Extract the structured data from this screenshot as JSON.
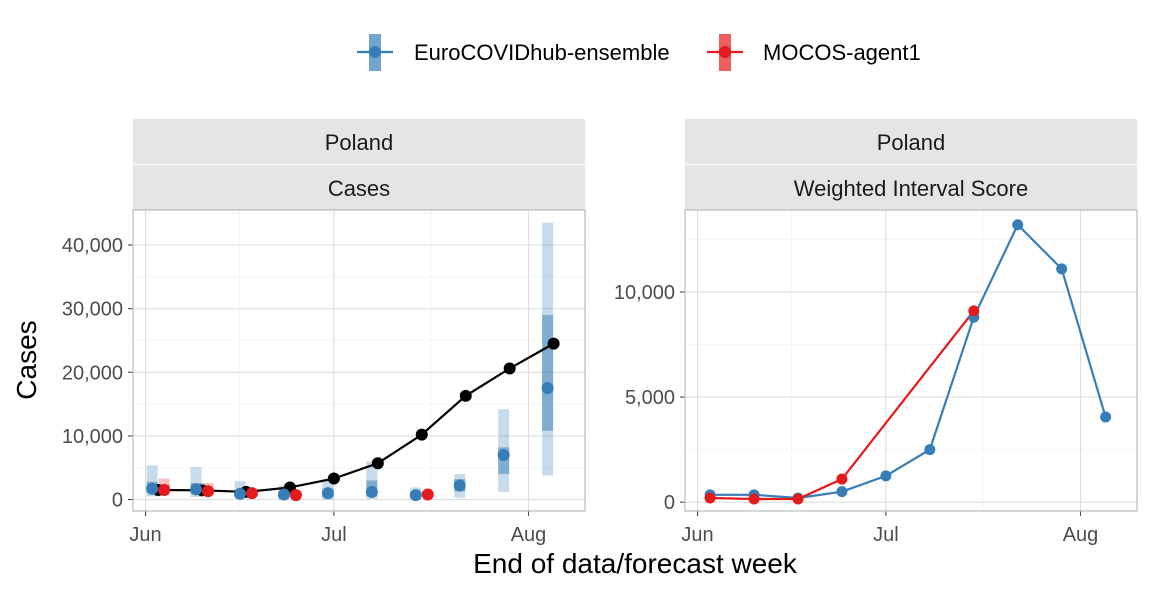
{
  "colors": {
    "ensemble": "#377EB8",
    "mocos": "#E41A1C",
    "observed": "#000000"
  },
  "legend": {
    "items": [
      {
        "label": "EuroCOVIDhub-ensemble",
        "color": "#377EB8"
      },
      {
        "label": "MOCOS-agent1",
        "color": "#E41A1C"
      }
    ]
  },
  "xlabel": "End of data/forecast week",
  "chart_data": [
    {
      "type": "line",
      "strip_top": "Poland",
      "strip_bottom": "Cases",
      "ylabel": "Cases",
      "x_ticks": [
        "Jun",
        "Jul",
        "Aug"
      ],
      "x_tick_dates": [
        "2021-06-01",
        "2021-07-01",
        "2021-08-01"
      ],
      "xlim": [
        "2021-05-30",
        "2021-08-10"
      ],
      "y_ticks": [
        0,
        10000,
        20000,
        30000,
        40000
      ],
      "y_tick_labels": [
        "0",
        "10,000",
        "20,000",
        "30,000",
        "40,000"
      ],
      "ylim": [
        -1800,
        45500
      ],
      "observed": {
        "x": [
          "2021-06-03",
          "2021-06-10",
          "2021-06-17",
          "2021-06-24",
          "2021-07-01",
          "2021-07-08",
          "2021-07-15",
          "2021-07-22",
          "2021-07-29",
          "2021-08-05"
        ],
        "y": [
          1500,
          1450,
          1200,
          1900,
          3300,
          5700,
          10200,
          16300,
          20600,
          24500
        ]
      },
      "forecasts": [
        {
          "name": "EuroCOVIDhub-ensemble",
          "color": "#377EB8",
          "x": [
            "2021-06-03",
            "2021-06-10",
            "2021-06-17",
            "2021-06-24",
            "2021-07-01",
            "2021-07-08",
            "2021-07-15",
            "2021-07-22",
            "2021-07-29",
            "2021-08-05"
          ],
          "median": [
            1700,
            1600,
            900,
            800,
            1000,
            1200,
            700,
            2200,
            7000,
            17500
          ],
          "inner": [
            [
              1000,
              2800
            ],
            [
              900,
              2600
            ],
            [
              400,
              1500
            ],
            [
              300,
              1400
            ],
            [
              300,
              1700
            ],
            [
              500,
              3000
            ],
            [
              300,
              1200
            ],
            [
              1300,
              3200
            ],
            [
              4000,
              8200
            ],
            [
              10800,
              29000
            ]
          ],
          "outer": [
            [
              500,
              5400
            ],
            [
              400,
              5100
            ],
            [
              100,
              2900
            ],
            [
              0,
              2200
            ],
            [
              0,
              3200
            ],
            [
              100,
              6000
            ],
            [
              0,
              1900
            ],
            [
              300,
              4000
            ],
            [
              1200,
              14200
            ],
            [
              3800,
              43500
            ]
          ]
        },
        {
          "name": "MOCOS-agent1",
          "color": "#E41A1C",
          "x": [
            "2021-06-03",
            "2021-06-10",
            "2021-06-17",
            "2021-06-24",
            "2021-07-15"
          ],
          "median": [
            1500,
            1300,
            1000,
            700,
            800
          ],
          "inner": [
            [
              1000,
              2300
            ],
            [
              900,
              1800
            ],
            [
              700,
              1300
            ],
            [
              400,
              1000
            ],
            [
              600,
              1100
            ]
          ],
          "outer": [
            [
              700,
              3300
            ],
            [
              600,
              2600
            ],
            [
              500,
              1600
            ],
            [
              300,
              1300
            ],
            [
              400,
              1300
            ]
          ]
        }
      ]
    },
    {
      "type": "line",
      "strip_top": "Poland",
      "strip_bottom": "Weighted Interval Score",
      "ylabel": "",
      "x_ticks": [
        "Jun",
        "Jul",
        "Aug"
      ],
      "x_tick_dates": [
        "2021-06-01",
        "2021-07-01",
        "2021-08-01"
      ],
      "xlim": [
        "2021-05-30",
        "2021-08-10"
      ],
      "y_ticks": [
        0,
        5000,
        10000
      ],
      "y_tick_labels": [
        "0",
        "5,000",
        "10,000"
      ],
      "ylim": [
        -420,
        13900
      ],
      "series": [
        {
          "name": "EuroCOVIDhub-ensemble",
          "color": "#377EB8",
          "x": [
            "2021-06-03",
            "2021-06-10",
            "2021-06-17",
            "2021-06-24",
            "2021-07-01",
            "2021-07-08",
            "2021-07-15",
            "2021-07-22",
            "2021-07-29",
            "2021-08-05"
          ],
          "y": [
            350,
            350,
            200,
            500,
            1250,
            2500,
            8800,
            13200,
            11100,
            4050
          ]
        },
        {
          "name": "MOCOS-agent1",
          "color": "#E41A1C",
          "x": [
            "2021-06-03",
            "2021-06-10",
            "2021-06-17",
            "2021-06-24",
            "2021-07-15"
          ],
          "y": [
            200,
            150,
            150,
            1100,
            9100
          ]
        }
      ]
    }
  ]
}
